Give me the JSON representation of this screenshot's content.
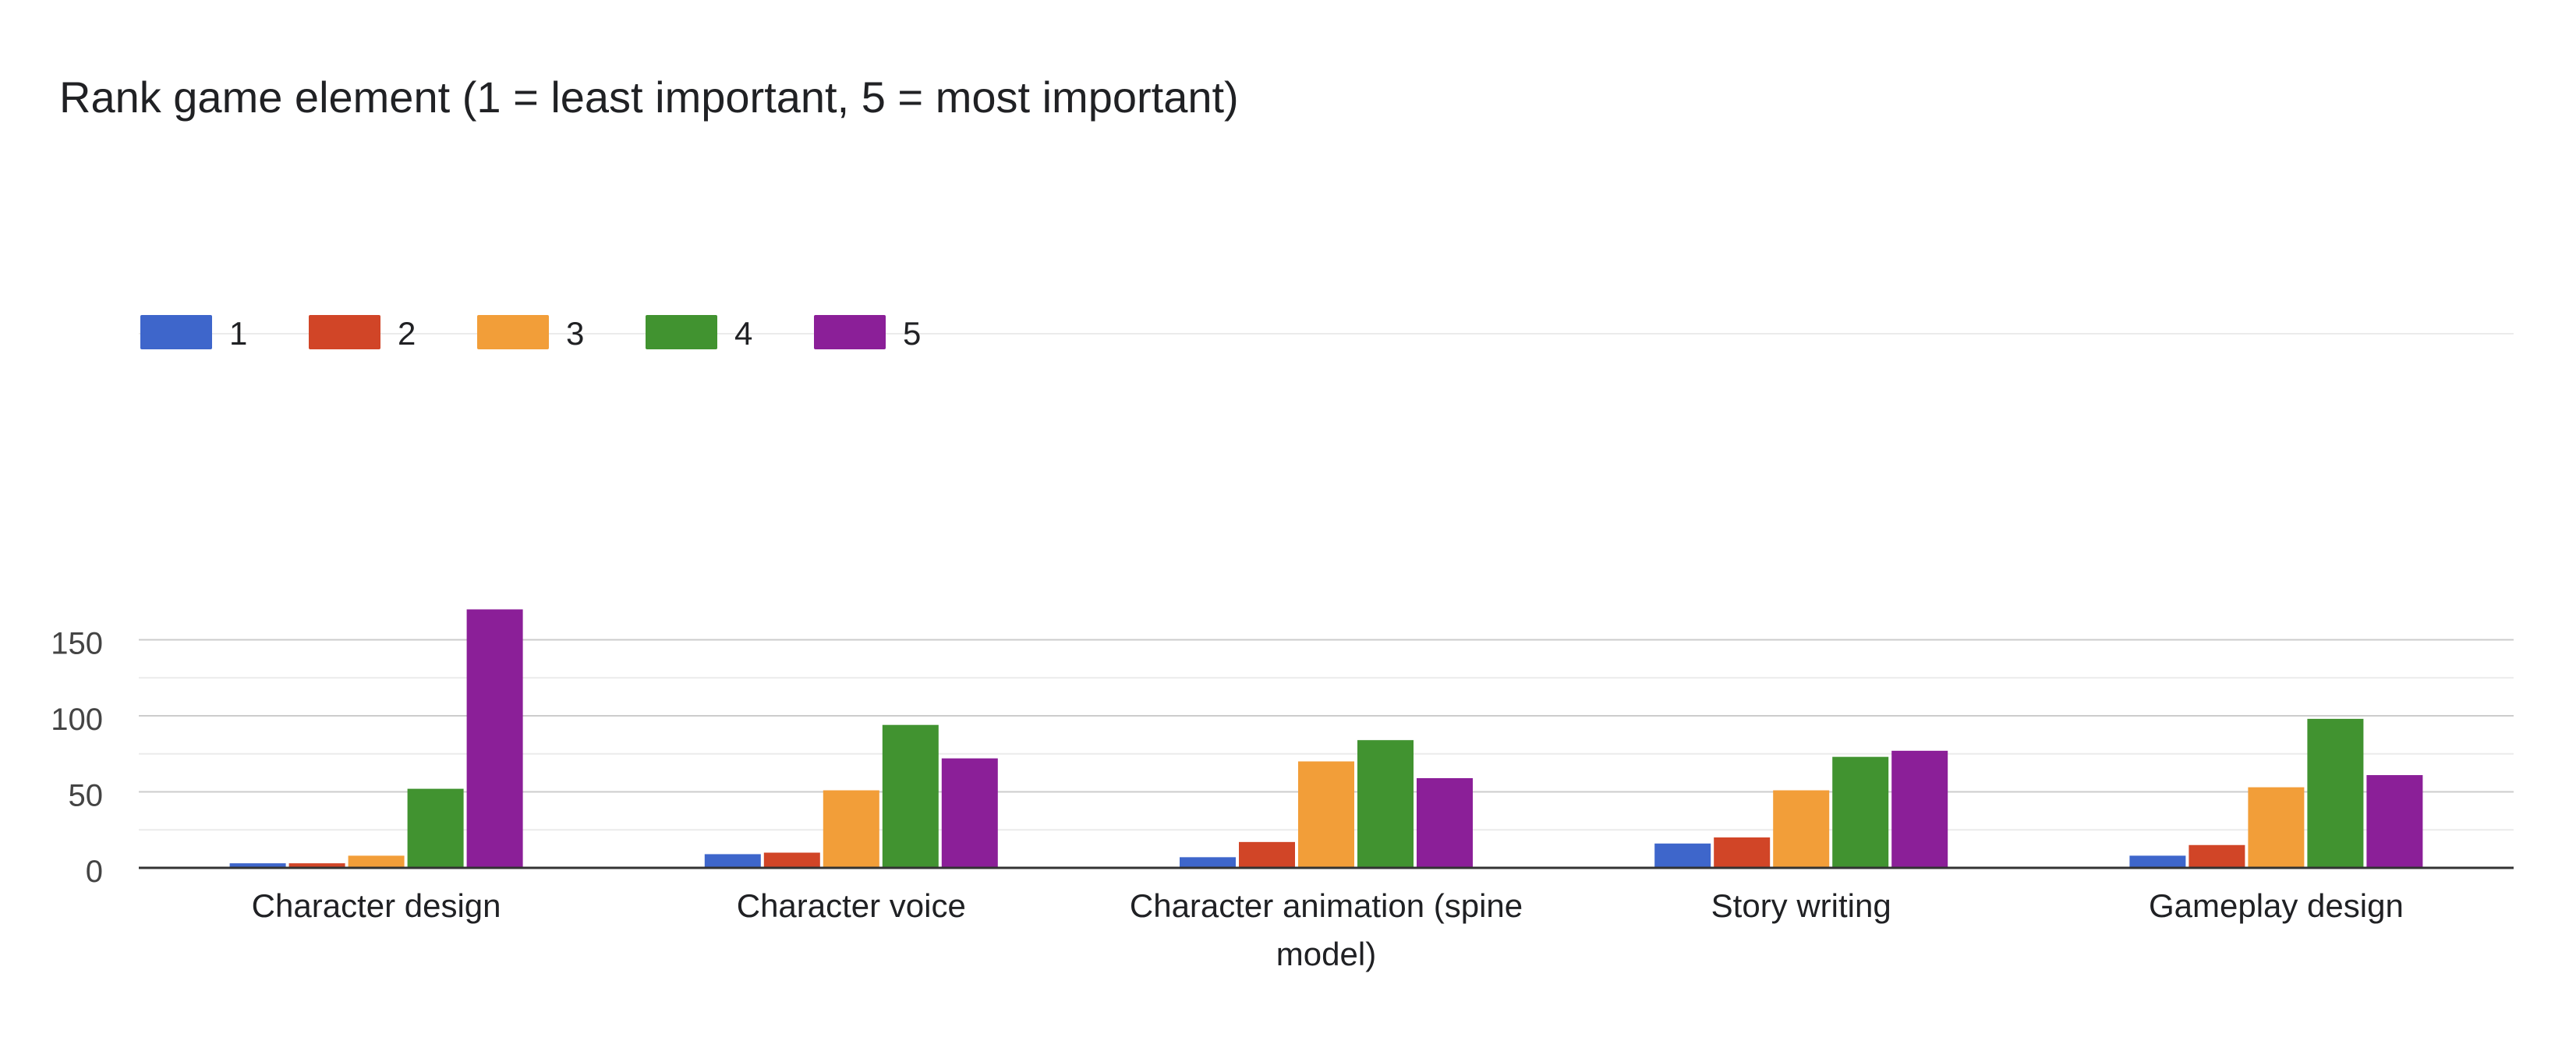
{
  "chart_data": {
    "type": "bar",
    "title": "Rank game element (1 = least important, 5 = most important)",
    "xlabel": "",
    "ylabel": "",
    "categories": [
      "Character design",
      "Character voice",
      "Character animation (spine model)",
      "Story writing",
      "Gameplay design"
    ],
    "category_lines": [
      [
        "Character design"
      ],
      [
        "Character voice"
      ],
      [
        "Character animation (spine",
        "model)"
      ],
      [
        "Story writing"
      ],
      [
        "Gameplay design"
      ]
    ],
    "series": [
      {
        "name": "1",
        "color": "#3E66CB",
        "values": [
          3,
          9,
          7,
          16,
          8
        ]
      },
      {
        "name": "2",
        "color": "#D14527",
        "values": [
          3,
          10,
          17,
          20,
          15
        ]
      },
      {
        "name": "3",
        "color": "#F29E39",
        "values": [
          8,
          51,
          70,
          51,
          53
        ]
      },
      {
        "name": "4",
        "color": "#419330",
        "values": [
          52,
          94,
          84,
          73,
          98
        ]
      },
      {
        "name": "5",
        "color": "#8B1F98",
        "values": [
          170,
          72,
          59,
          77,
          61
        ]
      }
    ],
    "ylim": [
      0,
      175
    ],
    "yticks": [
      0,
      50,
      100,
      150
    ],
    "ytick_labels": [
      "0",
      "50",
      "100",
      "150"
    ],
    "minor_gridlines": true,
    "grid": true,
    "legend_position": "top-left"
  }
}
